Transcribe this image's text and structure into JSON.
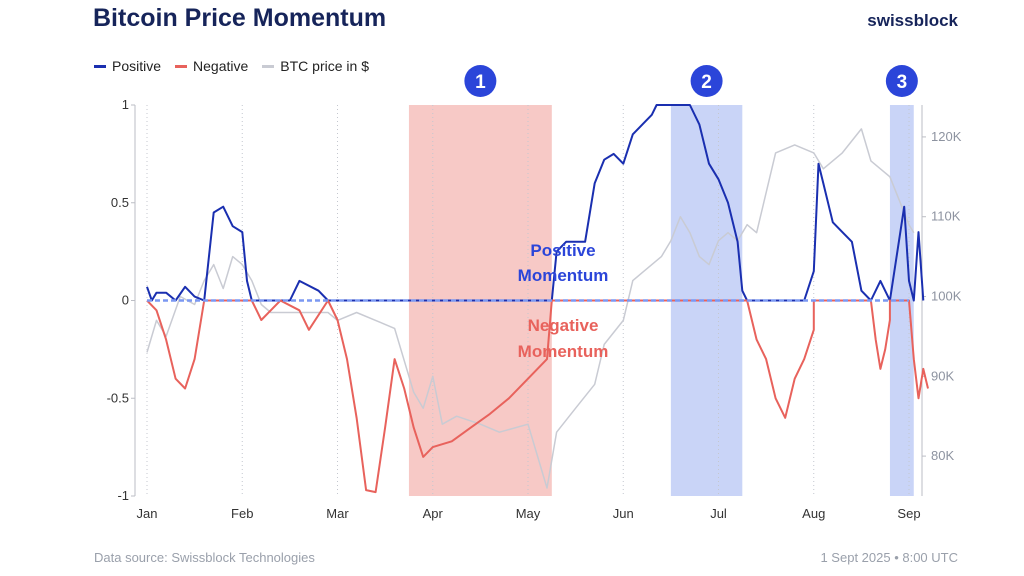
{
  "header": {
    "title": "Bitcoin Price Momentum",
    "brand": "swissblock"
  },
  "legend": [
    {
      "label": "Positive",
      "color": "#1a2fb0"
    },
    {
      "label": "Negative",
      "color": "#e8625c"
    },
    {
      "label": "BTC price in $",
      "color": "#c9cbd3"
    }
  ],
  "footer": {
    "source": "Data source: Swissblock Technologies",
    "timestamp": "1 Sept 2025 • 8:00 UTC"
  },
  "annotations": {
    "badges": [
      "1",
      "2",
      "3"
    ],
    "positive_label": [
      "Positive",
      "Momentum"
    ],
    "negative_label": [
      "Negative",
      "Momentum"
    ]
  },
  "chart_data": {
    "type": "line",
    "x_ticks": [
      "Jan",
      "Feb",
      "Mar",
      "Apr",
      "May",
      "Jun",
      "Jul",
      "Aug",
      "Sep"
    ],
    "y_left": {
      "range": [
        -1,
        1
      ],
      "ticks": [
        "1",
        "0.5",
        "0",
        "-0.5",
        "-1"
      ],
      "tick_values": [
        1,
        0.5,
        0,
        -0.5,
        -1
      ]
    },
    "y_right": {
      "range": [
        75,
        124
      ],
      "ticks": [
        "120K",
        "110K",
        "100K",
        "90K",
        "80K"
      ],
      "tick_values": [
        120,
        110,
        100,
        90,
        80
      ]
    },
    "shaded_regions": [
      {
        "id": "1",
        "start": 2.75,
        "end": 4.25,
        "color": "#f7c9c6"
      },
      {
        "id": "2",
        "start": 5.5,
        "end": 6.25,
        "color": "#c9d4f7"
      },
      {
        "id": "3",
        "start": 7.8,
        "end": 8.05,
        "color": "#c9d4f7"
      }
    ],
    "series": [
      {
        "name": "BTC price in $",
        "color": "#c9cbd3",
        "points": [
          [
            0,
            93
          ],
          [
            0.1,
            97
          ],
          [
            0.2,
            95
          ],
          [
            0.35,
            100
          ],
          [
            0.5,
            99
          ],
          [
            0.6,
            102
          ],
          [
            0.7,
            104
          ],
          [
            0.8,
            101
          ],
          [
            0.9,
            105
          ],
          [
            1.0,
            104
          ],
          [
            1.1,
            102
          ],
          [
            1.2,
            99
          ],
          [
            1.3,
            98
          ],
          [
            1.5,
            98
          ],
          [
            1.7,
            98
          ],
          [
            1.9,
            98
          ],
          [
            2.0,
            97
          ],
          [
            2.2,
            98
          ],
          [
            2.4,
            97
          ],
          [
            2.6,
            96
          ],
          [
            2.8,
            88
          ],
          [
            2.9,
            86
          ],
          [
            3.0,
            90
          ],
          [
            3.1,
            84
          ],
          [
            3.25,
            85
          ],
          [
            3.5,
            84
          ],
          [
            3.7,
            83
          ],
          [
            4.0,
            84
          ],
          [
            4.2,
            76
          ],
          [
            4.3,
            83
          ],
          [
            4.5,
            86
          ],
          [
            4.7,
            89
          ],
          [
            4.8,
            94
          ],
          [
            5.0,
            97
          ],
          [
            5.1,
            102
          ],
          [
            5.2,
            103
          ],
          [
            5.4,
            105
          ],
          [
            5.5,
            107
          ],
          [
            5.6,
            110
          ],
          [
            5.7,
            108
          ],
          [
            5.8,
            105
          ],
          [
            5.9,
            104
          ],
          [
            6.0,
            107
          ],
          [
            6.1,
            108
          ],
          [
            6.2,
            107
          ],
          [
            6.3,
            109
          ],
          [
            6.4,
            108
          ],
          [
            6.6,
            118
          ],
          [
            6.8,
            119
          ],
          [
            7.0,
            118
          ],
          [
            7.1,
            116
          ],
          [
            7.3,
            118
          ],
          [
            7.5,
            121
          ],
          [
            7.6,
            117
          ],
          [
            7.8,
            115
          ],
          [
            7.9,
            112
          ],
          [
            8.0,
            109
          ],
          [
            8.05,
            108
          ]
        ]
      },
      {
        "name": "Positive",
        "color": "#1a2fb0",
        "points": [
          [
            0,
            0.07
          ],
          [
            0.05,
            0.0
          ],
          [
            0.1,
            0.04
          ],
          [
            0.2,
            0.04
          ],
          [
            0.3,
            0.0
          ],
          [
            0.4,
            0.07
          ],
          [
            0.5,
            0.02
          ],
          [
            0.6,
            0.0
          ],
          [
            0.7,
            0.45
          ],
          [
            0.8,
            0.48
          ],
          [
            0.9,
            0.38
          ],
          [
            1.0,
            0.35
          ],
          [
            1.05,
            0.1
          ],
          [
            1.1,
            0.0
          ],
          [
            1.5,
            0.0
          ],
          [
            1.6,
            0.1
          ],
          [
            1.8,
            0.05
          ],
          [
            1.9,
            0.0
          ],
          [
            4.25,
            0.0
          ],
          [
            4.3,
            0.25
          ],
          [
            4.4,
            0.3
          ],
          [
            4.6,
            0.3
          ],
          [
            4.7,
            0.6
          ],
          [
            4.8,
            0.72
          ],
          [
            4.9,
            0.75
          ],
          [
            5.0,
            0.7
          ],
          [
            5.1,
            0.85
          ],
          [
            5.2,
            0.9
          ],
          [
            5.3,
            0.95
          ],
          [
            5.35,
            1.0
          ],
          [
            5.5,
            1.0
          ],
          [
            5.6,
            1.0
          ],
          [
            5.7,
            1.0
          ],
          [
            5.8,
            0.9
          ],
          [
            5.9,
            0.7
          ],
          [
            6.0,
            0.62
          ],
          [
            6.1,
            0.5
          ],
          [
            6.2,
            0.3
          ],
          [
            6.25,
            0.05
          ],
          [
            6.3,
            0.0
          ],
          [
            6.9,
            0.0
          ],
          [
            7.0,
            0.15
          ],
          [
            7.05,
            0.7
          ],
          [
            7.1,
            0.6
          ],
          [
            7.2,
            0.4
          ],
          [
            7.3,
            0.35
          ],
          [
            7.4,
            0.3
          ],
          [
            7.5,
            0.05
          ],
          [
            7.6,
            0.0
          ],
          [
            7.7,
            0.1
          ],
          [
            7.8,
            0.0
          ],
          [
            7.95,
            0.48
          ],
          [
            8.0,
            0.1
          ],
          [
            8.05,
            0.0
          ],
          [
            8.1,
            0.35
          ],
          [
            8.15,
            0.0
          ]
        ]
      },
      {
        "name": "Negative",
        "color": "#e8625c",
        "points": [
          [
            0,
            0.0
          ],
          [
            0.1,
            -0.05
          ],
          [
            0.2,
            -0.2
          ],
          [
            0.3,
            -0.4
          ],
          [
            0.4,
            -0.45
          ],
          [
            0.5,
            -0.3
          ],
          [
            0.6,
            0.0
          ],
          [
            1.1,
            0.0
          ],
          [
            1.2,
            -0.1
          ],
          [
            1.3,
            -0.05
          ],
          [
            1.4,
            0.0
          ],
          [
            1.6,
            -0.05
          ],
          [
            1.7,
            -0.15
          ],
          [
            1.9,
            0.0
          ],
          [
            2.0,
            -0.1
          ],
          [
            2.1,
            -0.3
          ],
          [
            2.2,
            -0.6
          ],
          [
            2.3,
            -0.97
          ],
          [
            2.4,
            -0.98
          ],
          [
            2.5,
            -0.65
          ],
          [
            2.6,
            -0.3
          ],
          [
            2.7,
            -0.45
          ],
          [
            2.8,
            -0.65
          ],
          [
            2.9,
            -0.8
          ],
          [
            3.0,
            -0.75
          ],
          [
            3.2,
            -0.72
          ],
          [
            3.4,
            -0.65
          ],
          [
            3.6,
            -0.58
          ],
          [
            3.8,
            -0.5
          ],
          [
            4.0,
            -0.4
          ],
          [
            4.2,
            -0.3
          ],
          [
            4.25,
            0.0
          ],
          [
            6.3,
            0.0
          ],
          [
            6.4,
            -0.2
          ],
          [
            6.5,
            -0.3
          ],
          [
            6.6,
            -0.5
          ],
          [
            6.7,
            -0.6
          ],
          [
            6.8,
            -0.4
          ],
          [
            6.9,
            -0.3
          ],
          [
            7.0,
            -0.15
          ],
          [
            7.0,
            0.0
          ],
          [
            7.6,
            0.0
          ],
          [
            7.65,
            -0.2
          ],
          [
            7.7,
            -0.35
          ],
          [
            7.75,
            -0.25
          ],
          [
            7.8,
            -0.1
          ],
          [
            7.8,
            0.0
          ],
          [
            8.0,
            0.0
          ],
          [
            8.05,
            -0.3
          ],
          [
            8.1,
            -0.5
          ],
          [
            8.15,
            -0.35
          ],
          [
            8.2,
            -0.45
          ]
        ]
      }
    ]
  }
}
